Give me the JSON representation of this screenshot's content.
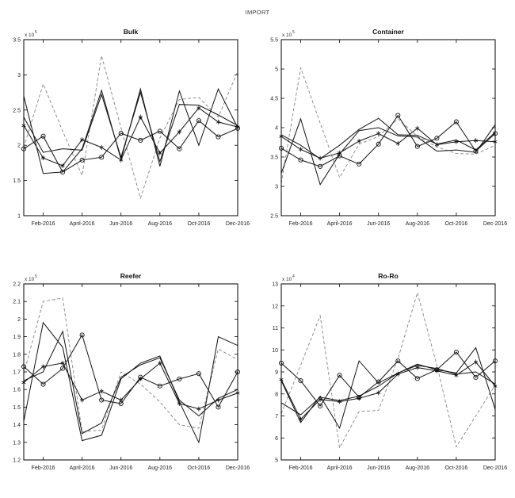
{
  "figure_title": "IMPORT",
  "axis_color": "#000000",
  "solid_line_color": "#111111",
  "dashed_line_color": "#848484",
  "chart_data": [
    {
      "type": "line",
      "title": "Bulk",
      "y_scale": {
        "base": "x 10",
        "exp": "5"
      },
      "ylim": [
        1.0,
        3.5
      ],
      "yticks": [
        1,
        1.5,
        2,
        2.5,
        3,
        3.5
      ],
      "ytick_labels": [
        "1",
        "1.5",
        "2",
        "2.5",
        "3",
        "3.5"
      ],
      "x_count": 12,
      "xtick_positions": [
        2,
        4,
        6,
        8,
        10,
        12
      ],
      "xtick_labels": [
        "Feb-2016",
        "April-2016",
        "Jun-2016",
        "Aug-2016",
        "Oct-2016",
        "Dec-2016"
      ],
      "series": [
        {
          "name": "dashed-line",
          "style": "dashed",
          "marker": "none",
          "values": [
            1.97,
            2.87,
            2.2,
            1.57,
            3.27,
            2.25,
            1.25,
            2.1,
            2.65,
            2.68,
            2.4,
            3.05
          ]
        },
        {
          "name": "solid-line-1",
          "style": "solid",
          "marker": "none",
          "values": [
            2.7,
            1.6,
            1.62,
            1.95,
            2.78,
            1.8,
            2.8,
            1.7,
            2.77,
            2.0,
            2.8,
            2.25
          ]
        },
        {
          "name": "solid-line-2",
          "style": "solid",
          "marker": "none",
          "values": [
            2.4,
            1.9,
            1.95,
            1.93,
            2.72,
            1.83,
            2.75,
            1.77,
            2.58,
            2.57,
            2.43,
            2.28
          ]
        },
        {
          "name": "asterisk-markers",
          "style": "solid",
          "marker": "asterisk",
          "values": [
            2.28,
            1.82,
            1.71,
            2.08,
            1.97,
            1.79,
            2.4,
            1.89,
            2.19,
            2.53,
            2.33,
            2.26
          ]
        },
        {
          "name": "circle-markers",
          "style": "solid",
          "marker": "circle",
          "values": [
            1.95,
            2.13,
            1.62,
            1.79,
            1.83,
            2.17,
            2.07,
            2.2,
            1.95,
            2.35,
            2.12,
            2.24
          ]
        }
      ]
    },
    {
      "type": "line",
      "title": "Container",
      "y_scale": {
        "base": "x 10",
        "exp": "5"
      },
      "ylim": [
        2.5,
        5.5
      ],
      "yticks": [
        2.5,
        3,
        3.5,
        4,
        4.5,
        5,
        5.5
      ],
      "ytick_labels": [
        "2.5",
        "3",
        "3.5",
        "4",
        "4.5",
        "5",
        "5.5"
      ],
      "x_count": 12,
      "xtick_positions": [
        2,
        4,
        6,
        8,
        10,
        12
      ],
      "xtick_labels": [
        "Feb-2016",
        "April-2016",
        "Jun-2016",
        "Aug-2016",
        "Oct-2016",
        "Dec-2016"
      ],
      "series": [
        {
          "name": "dashed-line",
          "style": "dashed",
          "marker": "none",
          "values": [
            3.05,
            5.02,
            4.08,
            3.15,
            3.72,
            3.85,
            4.15,
            3.85,
            3.67,
            3.56,
            3.55,
            3.7
          ]
        },
        {
          "name": "solid-line-1",
          "style": "solid",
          "marker": "none",
          "values": [
            3.22,
            4.15,
            3.03,
            3.55,
            3.95,
            4.0,
            3.86,
            3.84,
            3.6,
            3.62,
            3.58,
            4.05
          ]
        },
        {
          "name": "solid-line-2",
          "style": "solid",
          "marker": "none",
          "values": [
            3.88,
            3.7,
            3.47,
            3.7,
            3.97,
            4.16,
            3.88,
            3.87,
            3.72,
            3.79,
            3.62,
            3.92
          ]
        },
        {
          "name": "asterisk-markers",
          "style": "solid",
          "marker": "asterisk",
          "values": [
            3.85,
            3.63,
            3.48,
            3.57,
            3.77,
            3.9,
            3.73,
            3.99,
            3.71,
            3.76,
            3.78,
            3.76
          ]
        },
        {
          "name": "circle-markers",
          "style": "solid",
          "marker": "circle",
          "values": [
            3.65,
            3.45,
            3.34,
            3.52,
            3.38,
            3.72,
            4.21,
            3.68,
            3.82,
            4.1,
            3.6,
            3.9
          ]
        }
      ]
    },
    {
      "type": "line",
      "title": "Reefer",
      "y_scale": {
        "base": "x 10",
        "exp": "5"
      },
      "ylim": [
        1.2,
        2.2
      ],
      "yticks": [
        1.2,
        1.3,
        1.4,
        1.5,
        1.6,
        1.7,
        1.8,
        1.9,
        2,
        2.1,
        2.2
      ],
      "ytick_labels": [
        "1.2",
        "1.3",
        "1.4",
        "1.5",
        "1.6",
        "1.7",
        "1.8",
        "1.9",
        "2",
        "2.1",
        "2.2"
      ],
      "x_count": 12,
      "xtick_positions": [
        2,
        4,
        6,
        8,
        10,
        12
      ],
      "xtick_labels": [
        "Feb-2016",
        "April-2016",
        "Jun-2016",
        "Aug-2016",
        "Oct-2016",
        "Dec-2016"
      ],
      "series": [
        {
          "name": "dashed-line",
          "style": "dashed",
          "marker": "none",
          "values": [
            1.69,
            2.1,
            2.12,
            1.36,
            1.37,
            1.7,
            1.63,
            1.53,
            1.4,
            1.38,
            1.83,
            1.77
          ]
        },
        {
          "name": "solid-line-1",
          "style": "solid",
          "marker": "none",
          "values": [
            1.42,
            1.98,
            1.84,
            1.31,
            1.34,
            1.66,
            1.75,
            1.79,
            1.53,
            1.3,
            1.9,
            1.85
          ]
        },
        {
          "name": "solid-line-2",
          "style": "solid",
          "marker": "none",
          "values": [
            1.65,
            1.7,
            1.93,
            1.35,
            1.41,
            1.67,
            1.74,
            1.78,
            1.54,
            1.45,
            1.55,
            1.6
          ]
        },
        {
          "name": "asterisk-markers",
          "style": "solid",
          "marker": "asterisk",
          "values": [
            1.64,
            1.73,
            1.75,
            1.54,
            1.59,
            1.54,
            1.66,
            1.75,
            1.52,
            1.49,
            1.54,
            1.58
          ]
        },
        {
          "name": "circle-markers",
          "style": "solid",
          "marker": "circle",
          "values": [
            1.73,
            1.63,
            1.72,
            1.91,
            1.54,
            1.52,
            1.67,
            1.62,
            1.66,
            1.69,
            1.5,
            1.7
          ]
        }
      ]
    },
    {
      "type": "line",
      "title": "Ro-Ro",
      "y_scale": {
        "base": "x 10",
        "exp": "4"
      },
      "ylim": [
        5,
        13
      ],
      "yticks": [
        5,
        6,
        7,
        8,
        9,
        10,
        11,
        12,
        13
      ],
      "ytick_labels": [
        "5",
        "6",
        "7",
        "8",
        "9",
        "10",
        "11",
        "12",
        "13"
      ],
      "x_count": 12,
      "xtick_positions": [
        2,
        4,
        6,
        8,
        10,
        12
      ],
      "xtick_labels": [
        "Feb-2016",
        "April-2016",
        "Jun-2016",
        "Aug-2016",
        "Oct-2016",
        "Dec-2016"
      ],
      "series": [
        {
          "name": "dashed-line",
          "style": "dashed",
          "marker": "none",
          "values": [
            7.1,
            9.3,
            11.55,
            5.55,
            7.2,
            7.25,
            9.6,
            12.6,
            9.3,
            5.6,
            7.0,
            8.4
          ]
        },
        {
          "name": "solid-line-1",
          "style": "solid",
          "marker": "none",
          "values": [
            8.6,
            6.7,
            7.9,
            6.45,
            9.5,
            8.5,
            8.95,
            9.35,
            9.1,
            8.95,
            10.1,
            7.3
          ]
        },
        {
          "name": "solid-line-2",
          "style": "solid",
          "marker": "none",
          "values": [
            7.6,
            7.05,
            7.85,
            7.7,
            7.9,
            8.35,
            8.95,
            9.3,
            9.15,
            8.9,
            9.0,
            8.45
          ]
        },
        {
          "name": "asterisk-markers",
          "style": "solid",
          "marker": "asterisk",
          "values": [
            8.65,
            6.85,
            7.75,
            7.65,
            7.8,
            8.05,
            8.9,
            9.2,
            9.05,
            8.85,
            9.45,
            8.35
          ]
        },
        {
          "name": "circle-markers",
          "style": "solid",
          "marker": "circle",
          "values": [
            9.4,
            8.6,
            7.45,
            8.85,
            7.85,
            8.55,
            9.5,
            8.7,
            9.1,
            9.9,
            8.75,
            9.5
          ]
        }
      ]
    }
  ]
}
